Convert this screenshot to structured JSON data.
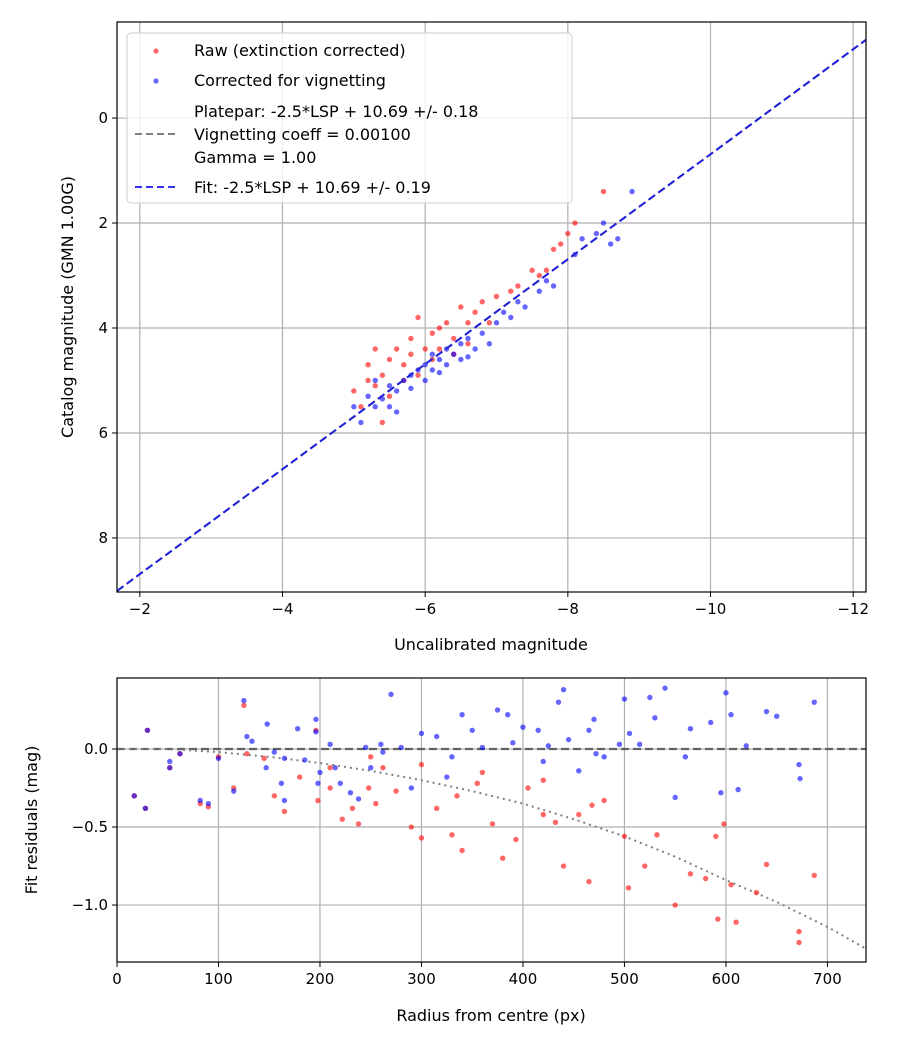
{
  "chart_data": [
    {
      "type": "scatter",
      "xlabel": "Uncalibrated magnitude",
      "ylabel": "Catalog magnitude (GMN 1.00G)",
      "xlim": [
        -1.68,
        -12.18
      ],
      "ylim": [
        9.03,
        -1.83
      ],
      "grid": true,
      "legend_placement": "top-left",
      "xticks": [
        -2,
        -4,
        -6,
        -8,
        -10,
        -12
      ],
      "xtick_labels": [
        "−2",
        "−4",
        "−6",
        "−8",
        "−10",
        "−12"
      ],
      "yticks": [
        0,
        2,
        4,
        6,
        8
      ],
      "ytick_labels": [
        "0",
        "2",
        "4",
        "6",
        "8"
      ],
      "legend": {
        "raw": "Raw (extinction corrected)",
        "corrected": "Corrected for vignetting",
        "platepar_line1": "Platepar: -2.5*LSP + 10.69 +/- 0.18",
        "platepar_line2": "Vignetting coeff = 0.00100",
        "platepar_line3": "Gamma = 1.00",
        "fit": "Fit: -2.5*LSP + 10.69 +/- 0.19"
      },
      "lines": [
        {
          "name": "platepar",
          "slope": 1,
          "intercept": 10.69,
          "color": "#808080",
          "style": "dashed"
        },
        {
          "name": "fit",
          "slope": 1,
          "intercept": 10.69,
          "color": "#2020dd",
          "style": "dashed"
        }
      ],
      "series": [
        {
          "name": "Raw (extinction corrected)",
          "color": "#ff0000",
          "points": [
            [
              -5.0,
              5.2
            ],
            [
              -5.1,
              5.5
            ],
            [
              -5.2,
              4.7
            ],
            [
              -5.2,
              5.0
            ],
            [
              -5.3,
              4.4
            ],
            [
              -5.4,
              4.9
            ],
            [
              -5.5,
              4.6
            ],
            [
              -5.5,
              5.3
            ],
            [
              -5.6,
              4.4
            ],
            [
              -5.7,
              4.7
            ],
            [
              -5.8,
              4.2
            ],
            [
              -5.8,
              4.5
            ],
            [
              -5.9,
              3.8
            ],
            [
              -6.0,
              4.4
            ],
            [
              -6.1,
              4.1
            ],
            [
              -6.1,
              4.6
            ],
            [
              -6.2,
              4.0
            ],
            [
              -6.3,
              3.9
            ],
            [
              -6.4,
              4.2
            ],
            [
              -6.5,
              3.6
            ],
            [
              -6.6,
              3.9
            ],
            [
              -6.7,
              3.7
            ],
            [
              -6.8,
              3.5
            ],
            [
              -6.9,
              3.9
            ],
            [
              -7.0,
              3.4
            ],
            [
              -7.2,
              3.3
            ],
            [
              -7.3,
              3.2
            ],
            [
              -7.5,
              2.9
            ],
            [
              -7.6,
              3.0
            ],
            [
              -7.7,
              2.9
            ],
            [
              -7.8,
              2.5
            ],
            [
              -7.9,
              2.4
            ],
            [
              -8.0,
              2.2
            ],
            [
              -8.1,
              2.0
            ],
            [
              -8.5,
              1.4
            ],
            [
              -5.4,
              5.8
            ],
            [
              -6.4,
              4.5
            ],
            [
              -5.9,
              4.9
            ],
            [
              -5.3,
              5.1
            ],
            [
              -5.7,
              5.0
            ],
            [
              -6.2,
              4.4
            ],
            [
              -6.6,
              4.3
            ]
          ]
        },
        {
          "name": "Corrected for vignetting",
          "color": "#0000ff",
          "points": [
            [
              -5.0,
              5.5
            ],
            [
              -5.1,
              5.8
            ],
            [
              -5.2,
              5.3
            ],
            [
              -5.3,
              5.5
            ],
            [
              -5.4,
              5.35
            ],
            [
              -5.5,
              5.1
            ],
            [
              -5.5,
              5.5
            ],
            [
              -5.6,
              5.2
            ],
            [
              -5.7,
              5.0
            ],
            [
              -5.8,
              4.9
            ],
            [
              -5.8,
              5.15
            ],
            [
              -5.9,
              4.8
            ],
            [
              -6.0,
              4.7
            ],
            [
              -6.0,
              5.0
            ],
            [
              -6.1,
              4.5
            ],
            [
              -6.1,
              4.8
            ],
            [
              -6.2,
              4.6
            ],
            [
              -6.3,
              4.4
            ],
            [
              -6.3,
              4.7
            ],
            [
              -6.4,
              4.5
            ],
            [
              -6.5,
              4.3
            ],
            [
              -6.5,
              4.6
            ],
            [
              -6.6,
              4.2
            ],
            [
              -6.7,
              4.4
            ],
            [
              -6.8,
              4.1
            ],
            [
              -6.9,
              4.3
            ],
            [
              -7.0,
              3.9
            ],
            [
              -7.1,
              3.7
            ],
            [
              -7.2,
              3.8
            ],
            [
              -7.3,
              3.5
            ],
            [
              -7.4,
              3.6
            ],
            [
              -7.6,
              3.3
            ],
            [
              -7.7,
              3.1
            ],
            [
              -7.8,
              3.2
            ],
            [
              -8.1,
              2.6
            ],
            [
              -8.2,
              2.3
            ],
            [
              -8.4,
              2.2
            ],
            [
              -8.5,
              2.0
            ],
            [
              -8.6,
              2.4
            ],
            [
              -8.7,
              2.3
            ],
            [
              -8.9,
              1.4
            ],
            [
              -5.6,
              5.6
            ],
            [
              -6.2,
              4.85
            ],
            [
              -5.3,
              5.0
            ],
            [
              -6.6,
              4.55
            ]
          ]
        }
      ]
    },
    {
      "type": "scatter",
      "xlabel": "Radius from centre (px)",
      "ylabel": "Fit residuals (mag)",
      "xlim": [
        0,
        738
      ],
      "ylim": [
        -1.365,
        0.455
      ],
      "grid": true,
      "xticks": [
        0,
        100,
        200,
        300,
        400,
        500,
        600,
        700
      ],
      "xtick_labels": [
        "0",
        "100",
        "200",
        "300",
        "400",
        "500",
        "600",
        "700"
      ],
      "yticks": [
        0.0,
        -0.5,
        -1.0
      ],
      "ytick_labels": [
        "0.0",
        "−0.5",
        "−1.0"
      ],
      "lines": [
        {
          "name": "zero",
          "points": [
            [
              0,
              0
            ],
            [
              738,
              0
            ]
          ],
          "color": "#555555",
          "style": "dashed"
        },
        {
          "name": "vignetting-model",
          "points": [
            [
              0,
              0
            ],
            [
              50,
              0
            ],
            [
              100,
              -0.02
            ],
            [
              150,
              -0.05
            ],
            [
              200,
              -0.09
            ],
            [
              250,
              -0.14
            ],
            [
              300,
              -0.2
            ],
            [
              350,
              -0.27
            ],
            [
              400,
              -0.35
            ],
            [
              450,
              -0.45
            ],
            [
              500,
              -0.56
            ],
            [
              550,
              -0.69
            ],
            [
              600,
              -0.84
            ],
            [
              650,
              -0.98
            ],
            [
              700,
              -1.14
            ],
            [
              738,
              -1.28
            ]
          ],
          "color": "#808080",
          "style": "dotted"
        }
      ],
      "series": [
        {
          "name": "Raw",
          "color": "#ff0000",
          "points": [
            [
              17,
              -0.3
            ],
            [
              28,
              -0.38
            ],
            [
              30,
              0.12
            ],
            [
              52,
              -0.12
            ],
            [
              62,
              -0.03
            ],
            [
              82,
              -0.35
            ],
            [
              90,
              -0.37
            ],
            [
              100,
              -0.05
            ],
            [
              115,
              -0.25
            ],
            [
              125,
              0.28
            ],
            [
              128,
              -0.03
            ],
            [
              145,
              -0.06
            ],
            [
              155,
              -0.3
            ],
            [
              165,
              -0.4
            ],
            [
              180,
              -0.18
            ],
            [
              196,
              0.12
            ],
            [
              198,
              -0.33
            ],
            [
              210,
              -0.25
            ],
            [
              222,
              -0.45
            ],
            [
              232,
              -0.38
            ],
            [
              238,
              -0.48
            ],
            [
              248,
              -0.25
            ],
            [
              255,
              -0.35
            ],
            [
              262,
              -0.12
            ],
            [
              275,
              -0.27
            ],
            [
              290,
              -0.5
            ],
            [
              300,
              -0.57
            ],
            [
              315,
              -0.38
            ],
            [
              330,
              -0.55
            ],
            [
              340,
              -0.65
            ],
            [
              355,
              -0.22
            ],
            [
              370,
              -0.48
            ],
            [
              380,
              -0.7
            ],
            [
              393,
              -0.58
            ],
            [
              405,
              -0.25
            ],
            [
              420,
              -0.42
            ],
            [
              432,
              -0.47
            ],
            [
              440,
              -0.75
            ],
            [
              455,
              -0.42
            ],
            [
              465,
              -0.85
            ],
            [
              468,
              -0.36
            ],
            [
              480,
              -0.33
            ],
            [
              500,
              -0.56
            ],
            [
              504,
              -0.89
            ],
            [
              520,
              -0.75
            ],
            [
              532,
              -0.55
            ],
            [
              550,
              -1.0
            ],
            [
              565,
              -0.8
            ],
            [
              580,
              -0.83
            ],
            [
              590,
              -0.56
            ],
            [
              592,
              -1.09
            ],
            [
              598,
              -0.48
            ],
            [
              605,
              -0.87
            ],
            [
              610,
              -1.11
            ],
            [
              630,
              -0.92
            ],
            [
              640,
              -0.74
            ],
            [
              672,
              -1.17
            ],
            [
              672,
              -1.24
            ],
            [
              687,
              -0.81
            ],
            [
              360,
              -0.15
            ],
            [
              420,
              -0.2
            ],
            [
              250,
              -0.05
            ],
            [
              300,
              -0.1
            ],
            [
              210,
              -0.12
            ],
            [
              335,
              -0.3
            ]
          ]
        },
        {
          "name": "Corrected",
          "color": "#0000ff",
          "points": [
            [
              17,
              -0.3
            ],
            [
              28,
              -0.38
            ],
            [
              30,
              0.12
            ],
            [
              52,
              -0.08
            ],
            [
              52,
              -0.12
            ],
            [
              62,
              -0.03
            ],
            [
              82,
              -0.33
            ],
            [
              90,
              -0.35
            ],
            [
              100,
              -0.06
            ],
            [
              115,
              -0.27
            ],
            [
              125,
              0.31
            ],
            [
              128,
              0.08
            ],
            [
              133,
              0.05
            ],
            [
              147,
              -0.12
            ],
            [
              148,
              0.16
            ],
            [
              155,
              -0.02
            ],
            [
              162,
              -0.22
            ],
            [
              165,
              -0.06
            ],
            [
              165,
              -0.33
            ],
            [
              178,
              0.13
            ],
            [
              185,
              -0.07
            ],
            [
              196,
              0.19
            ],
            [
              196,
              0.11
            ],
            [
              198,
              -0.22
            ],
            [
              200,
              -0.15
            ],
            [
              210,
              0.03
            ],
            [
              215,
              -0.12
            ],
            [
              220,
              -0.22
            ],
            [
              230,
              -0.28
            ],
            [
              238,
              -0.32
            ],
            [
              245,
              0.01
            ],
            [
              250,
              -0.12
            ],
            [
              260,
              0.03
            ],
            [
              262,
              -0.02
            ],
            [
              270,
              0.35
            ],
            [
              280,
              0.01
            ],
            [
              290,
              -0.25
            ],
            [
              300,
              0.1
            ],
            [
              315,
              0.08
            ],
            [
              325,
              -0.18
            ],
            [
              330,
              -0.05
            ],
            [
              340,
              0.22
            ],
            [
              350,
              0.12
            ],
            [
              360,
              0.01
            ],
            [
              375,
              0.25
            ],
            [
              385,
              0.22
            ],
            [
              390,
              0.04
            ],
            [
              400,
              0.14
            ],
            [
              415,
              0.12
            ],
            [
              420,
              -0.08
            ],
            [
              425,
              0.02
            ],
            [
              435,
              0.3
            ],
            [
              440,
              0.38
            ],
            [
              445,
              0.06
            ],
            [
              455,
              -0.14
            ],
            [
              465,
              0.12
            ],
            [
              470,
              0.19
            ],
            [
              472,
              -0.03
            ],
            [
              480,
              -0.05
            ],
            [
              495,
              0.03
            ],
            [
              500,
              0.32
            ],
            [
              505,
              0.1
            ],
            [
              515,
              0.03
            ],
            [
              525,
              0.33
            ],
            [
              530,
              0.2
            ],
            [
              540,
              0.39
            ],
            [
              550,
              -0.31
            ],
            [
              560,
              -0.05
            ],
            [
              565,
              0.13
            ],
            [
              585,
              0.17
            ],
            [
              595,
              -0.28
            ],
            [
              600,
              0.36
            ],
            [
              605,
              0.22
            ],
            [
              612,
              -0.26
            ],
            [
              620,
              0.02
            ],
            [
              640,
              0.24
            ],
            [
              650,
              0.21
            ],
            [
              672,
              -0.1
            ],
            [
              673,
              -0.19
            ],
            [
              687,
              0.3
            ]
          ]
        }
      ]
    }
  ]
}
